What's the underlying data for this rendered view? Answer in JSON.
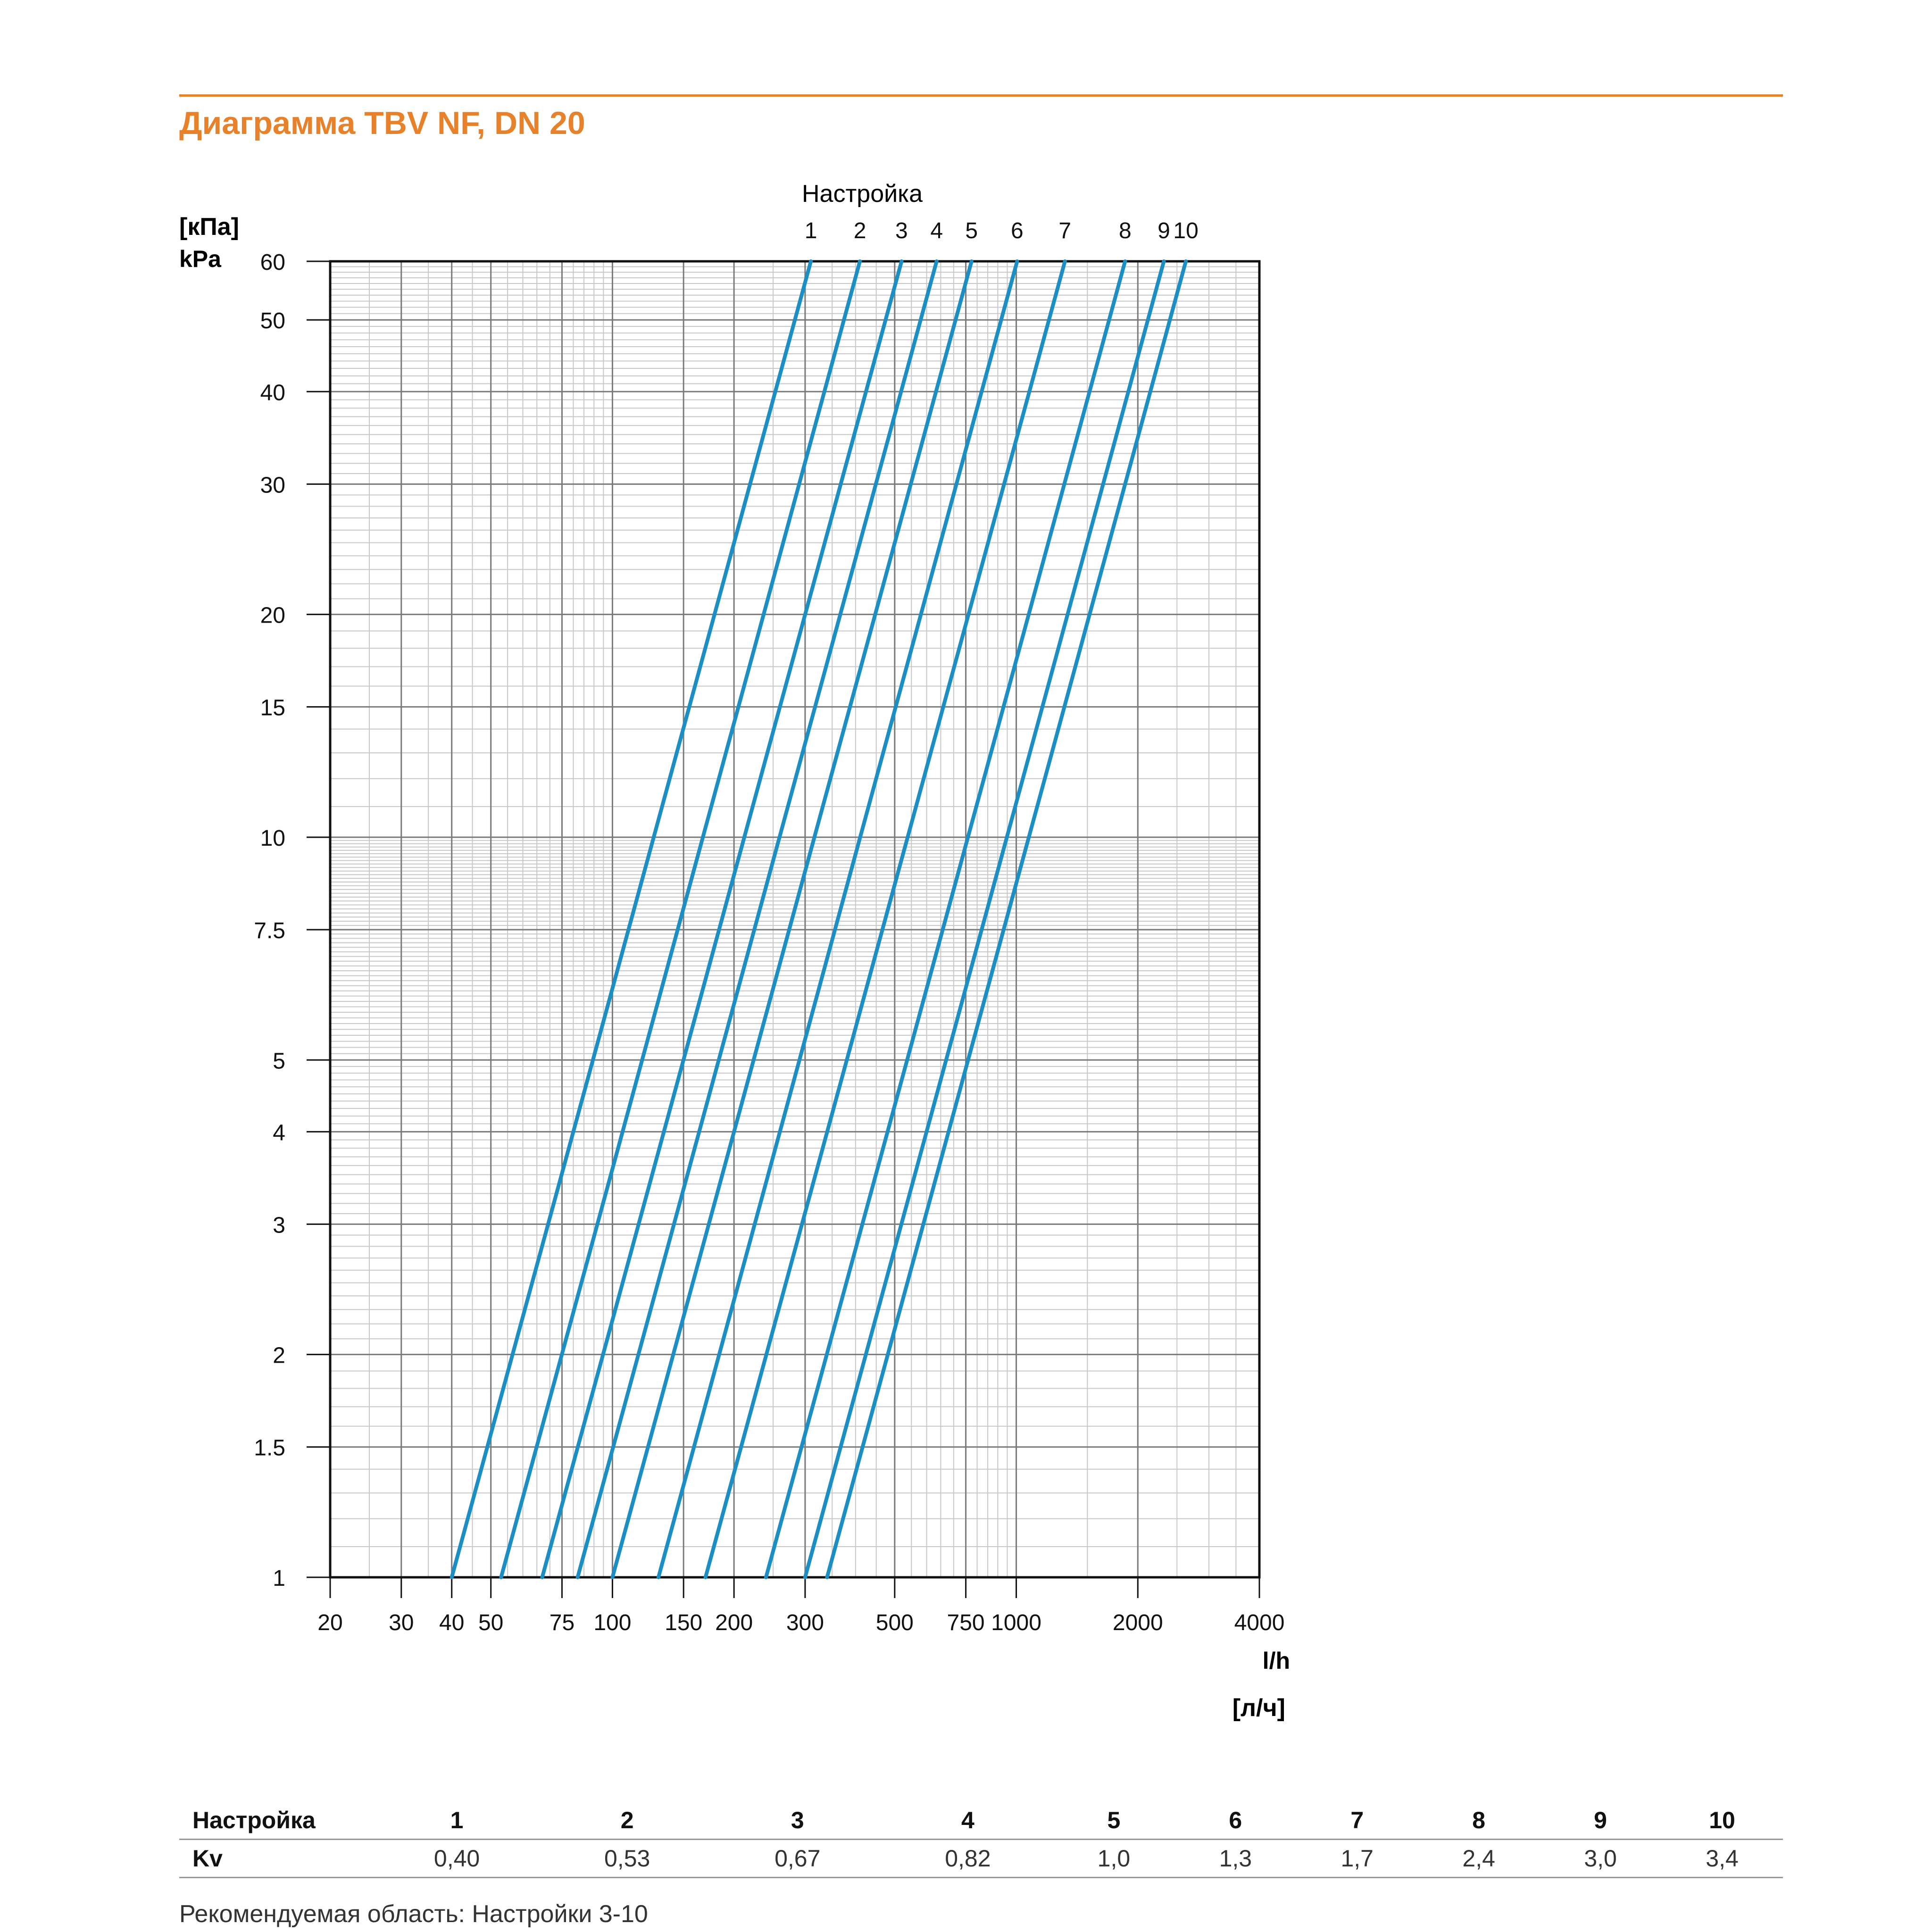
{
  "page": {
    "title": "Диаграмма TBV NF, DN 20",
    "note": "Рекомендуемая область: Настройки 3-10"
  },
  "colors": {
    "accent": "#e8822a",
    "curve": "#1b8fc4",
    "grid_major": "#7a7a7a",
    "grid_minor": "#c8c8c8"
  },
  "chart_data": {
    "type": "line",
    "x_scale": "log",
    "y_scale": "log",
    "xlim": [
      20,
      4000
    ],
    "ylim": [
      1,
      60
    ],
    "x_ticks": [
      "20",
      "30",
      "40",
      "50",
      "75",
      "100",
      "150",
      "200",
      "300",
      "500",
      "750",
      "1000",
      "2000",
      "4000"
    ],
    "x_tick_values": [
      20,
      30,
      40,
      50,
      75,
      100,
      150,
      200,
      300,
      500,
      750,
      1000,
      2000,
      4000
    ],
    "y_ticks": [
      "1",
      "1.5",
      "2",
      "3",
      "4",
      "5",
      "7.5",
      "10",
      "15",
      "20",
      "30",
      "40",
      "50",
      "60"
    ],
    "y_tick_values": [
      1,
      1.5,
      2,
      3,
      4,
      5,
      7.5,
      10,
      15,
      20,
      30,
      40,
      50,
      60
    ],
    "ylabel_ru": "[кПа]",
    "ylabel": "kPa",
    "xlabel": "l/h",
    "xlabel_ru": "[л/ч]",
    "top_label": "Настройка",
    "grid": true,
    "series": [
      {
        "name": "1",
        "kv": 0.4,
        "x": [
          40,
          310
        ],
        "y": [
          1,
          60
        ]
      },
      {
        "name": "2",
        "kv": 0.53,
        "x": [
          53,
          410
        ],
        "y": [
          1,
          60
        ]
      },
      {
        "name": "3",
        "kv": 0.67,
        "x": [
          67,
          520
        ],
        "y": [
          1,
          60
        ]
      },
      {
        "name": "4",
        "kv": 0.82,
        "x": [
          82,
          635
        ],
        "y": [
          1,
          60
        ]
      },
      {
        "name": "5",
        "kv": 1.0,
        "x": [
          100,
          775
        ],
        "y": [
          1,
          60
        ]
      },
      {
        "name": "6",
        "kv": 1.3,
        "x": [
          130,
          1005
        ],
        "y": [
          1,
          60
        ]
      },
      {
        "name": "7",
        "kv": 1.7,
        "x": [
          170,
          1320
        ],
        "y": [
          1,
          60
        ]
      },
      {
        "name": "8",
        "kv": 2.4,
        "x": [
          240,
          1860
        ],
        "y": [
          1,
          60
        ]
      },
      {
        "name": "9",
        "kv": 3.0,
        "x": [
          300,
          2320
        ],
        "y": [
          1,
          60
        ]
      },
      {
        "name": "10",
        "kv": 3.4,
        "x": [
          340,
          2630
        ],
        "y": [
          1,
          60
        ]
      }
    ]
  },
  "table": {
    "row1_label": "Настройка",
    "row2_label": "Kv",
    "settings": [
      "1",
      "2",
      "3",
      "4",
      "5",
      "6",
      "7",
      "8",
      "9",
      "10"
    ],
    "kv": [
      "0,40",
      "0,53",
      "0,67",
      "0,82",
      "1,0",
      "1,3",
      "1,7",
      "2,4",
      "3,0",
      "3,4"
    ]
  }
}
